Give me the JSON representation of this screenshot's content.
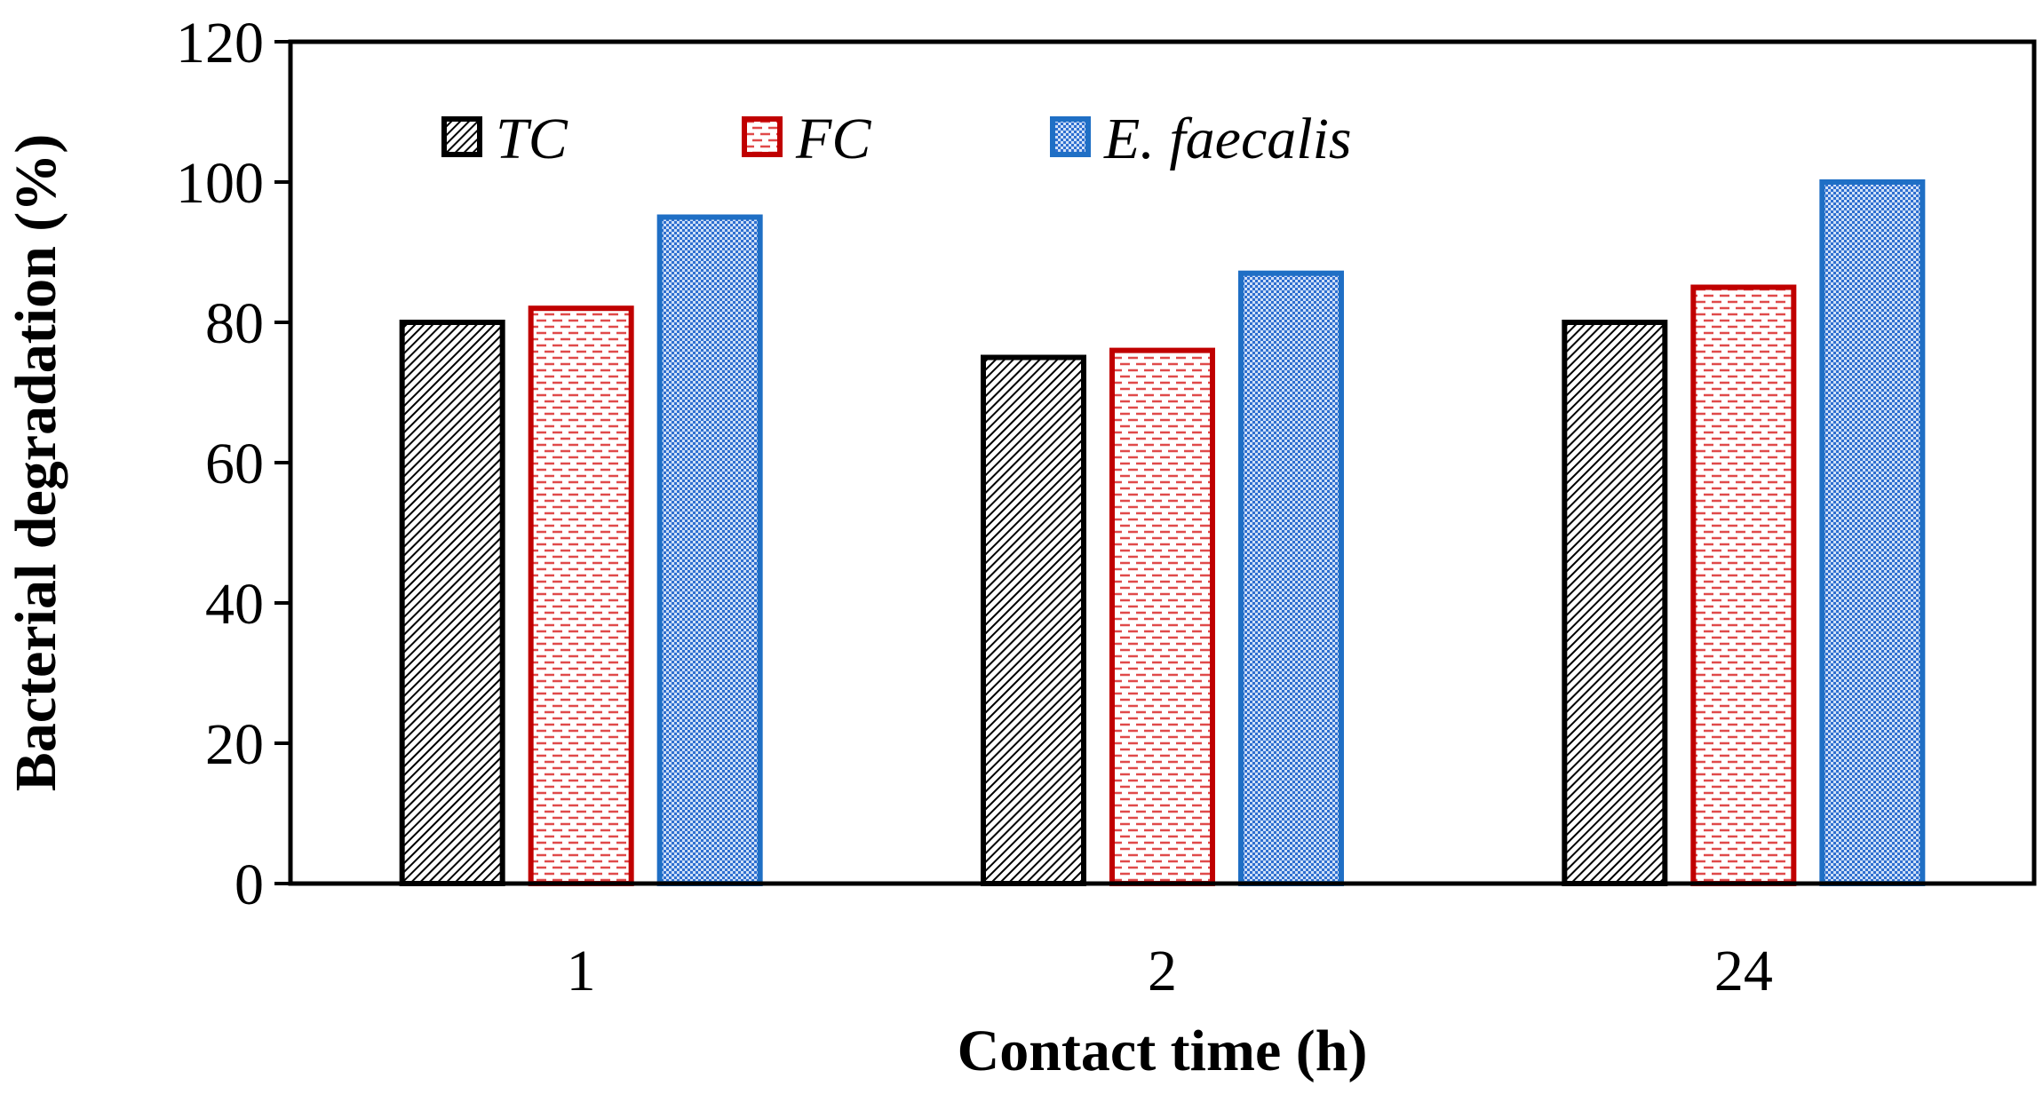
{
  "chart_data": {
    "type": "bar",
    "title": "",
    "xlabel": "Contact time (h)",
    "ylabel": "Bacterial degradation (%)",
    "categories": [
      "1",
      "2",
      "24"
    ],
    "ylim": [
      0,
      120
    ],
    "yticks": [
      "0",
      "20",
      "40",
      "60",
      "80",
      "100",
      "120"
    ],
    "grid": false,
    "legend_position": "top-left",
    "series": [
      {
        "name": "TC",
        "values": [
          80,
          75,
          80
        ],
        "color": "#000000",
        "fill": "hatch"
      },
      {
        "name": "FC",
        "values": [
          82,
          76,
          85
        ],
        "color": "#c00000",
        "fill": "dash"
      },
      {
        "name": "E. faecalis",
        "values": [
          95,
          87,
          100
        ],
        "color": "#1f6fc5",
        "fill": "dots"
      }
    ]
  }
}
